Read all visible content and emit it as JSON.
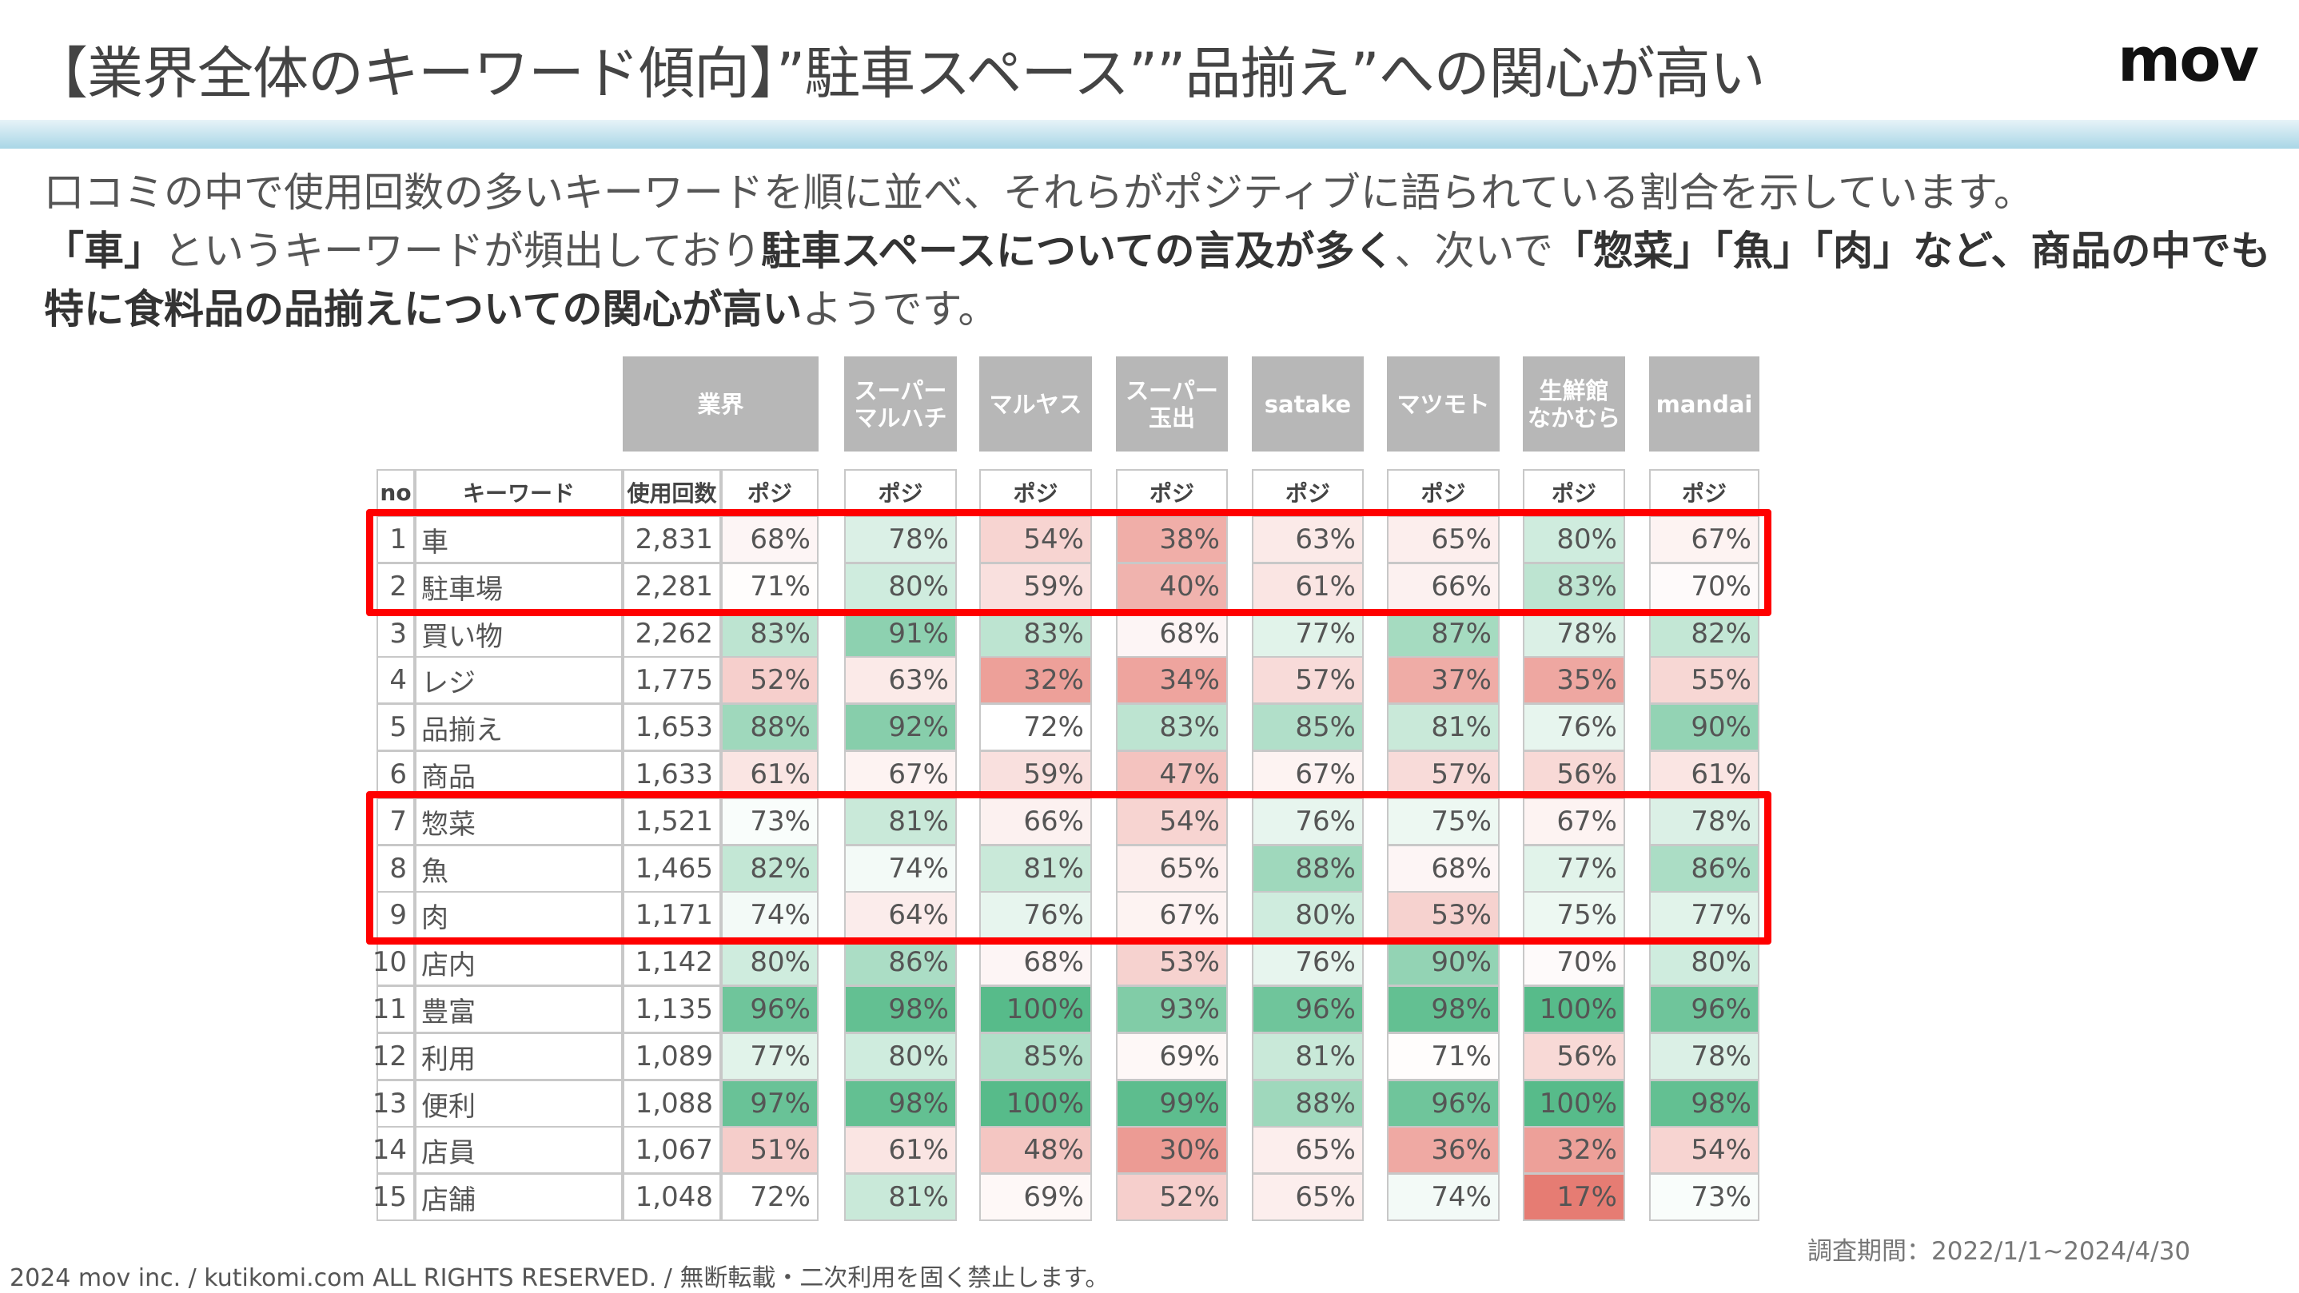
{
  "header": {
    "title": "【業界全体のキーワード傾向】”駐車スペース””品揃え”への関心が高い",
    "logo": "mov"
  },
  "description": [
    {
      "text": "口コミの中で使用回数の多いキーワードを順に並べ、それらがポジティブに語られている割合を示しています。",
      "bold": false,
      "br": true
    },
    {
      "text": "「車」",
      "bold": true
    },
    {
      "text": "というキーワードが頻出しており",
      "bold": false
    },
    {
      "text": "駐車スペースについての言及が多く",
      "bold": true
    },
    {
      "text": "、次いで",
      "bold": false
    },
    {
      "text": "「惣菜」「魚」「肉」など、商品の中でも特に食料品の品揃えについての関心が高い",
      "bold": true
    },
    {
      "text": "ようです。",
      "bold": false
    }
  ],
  "table": {
    "group_headers": [
      "業界",
      "スーパー\nマルハチ",
      "マルヤス",
      "スーパー\n玉出",
      "satake",
      "マツモト",
      "生鮮館\nなかむら",
      "mandai"
    ],
    "sub_headers": {
      "no": "no",
      "keyword": "キーワード",
      "count": "使用回数",
      "posi": "ポジ"
    },
    "rows": [
      {
        "no": "1",
        "keyword": "車",
        "count": "2,831",
        "posi": [
          68,
          78,
          54,
          38,
          63,
          65,
          80,
          67
        ]
      },
      {
        "no": "2",
        "keyword": "駐車場",
        "count": "2,281",
        "posi": [
          71,
          80,
          59,
          40,
          61,
          66,
          83,
          70
        ]
      },
      {
        "no": "3",
        "keyword": "買い物",
        "count": "2,262",
        "posi": [
          83,
          91,
          83,
          68,
          77,
          87,
          78,
          82
        ]
      },
      {
        "no": "4",
        "keyword": "レジ",
        "count": "1,775",
        "posi": [
          52,
          63,
          32,
          34,
          57,
          37,
          35,
          55
        ]
      },
      {
        "no": "5",
        "keyword": "品揃え",
        "count": "1,653",
        "posi": [
          88,
          92,
          72,
          83,
          85,
          81,
          76,
          90
        ]
      },
      {
        "no": "6",
        "keyword": "商品",
        "count": "1,633",
        "posi": [
          61,
          67,
          59,
          47,
          67,
          57,
          56,
          61
        ]
      },
      {
        "no": "7",
        "keyword": "惣菜",
        "count": "1,521",
        "posi": [
          73,
          81,
          66,
          54,
          76,
          75,
          67,
          78
        ]
      },
      {
        "no": "8",
        "keyword": "魚",
        "count": "1,465",
        "posi": [
          82,
          74,
          81,
          65,
          88,
          68,
          77,
          86
        ]
      },
      {
        "no": "9",
        "keyword": "肉",
        "count": "1,171",
        "posi": [
          74,
          64,
          76,
          67,
          80,
          53,
          75,
          77
        ]
      },
      {
        "no": "10",
        "keyword": "店内",
        "count": "1,142",
        "posi": [
          80,
          86,
          68,
          53,
          76,
          90,
          70,
          80
        ]
      },
      {
        "no": "11",
        "keyword": "豊富",
        "count": "1,135",
        "posi": [
          96,
          98,
          100,
          93,
          96,
          98,
          100,
          96
        ]
      },
      {
        "no": "12",
        "keyword": "利用",
        "count": "1,089",
        "posi": [
          77,
          80,
          85,
          69,
          81,
          71,
          56,
          78
        ]
      },
      {
        "no": "13",
        "keyword": "便利",
        "count": "1,088",
        "posi": [
          97,
          98,
          100,
          99,
          88,
          96,
          100,
          98
        ]
      },
      {
        "no": "14",
        "keyword": "店員",
        "count": "1,067",
        "posi": [
          51,
          61,
          48,
          30,
          65,
          36,
          32,
          54
        ]
      },
      {
        "no": "15",
        "keyword": "店舗",
        "count": "1,048",
        "posi": [
          72,
          81,
          69,
          52,
          65,
          74,
          17,
          73
        ]
      }
    ],
    "highlighted_rows": [
      [
        1,
        2
      ],
      [
        7,
        9
      ]
    ],
    "colors": {
      "high": "#57bb8a",
      "low": "#e67c73",
      "highlight": "#ff0000",
      "header": "#b7b7b7"
    }
  },
  "survey_period": "調査期間：2022/1/1~2024/4/30",
  "footer": "2024 mov inc. / kutikomi.com ALL RIGHTS RESERVED. / 無断転載・二次利用を固く禁止します。"
}
